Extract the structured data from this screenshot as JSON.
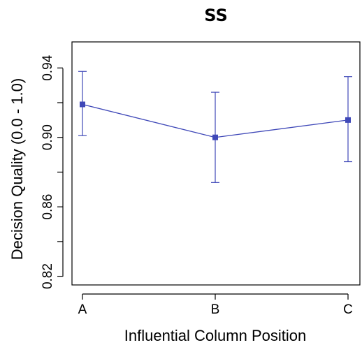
{
  "chart_data": {
    "type": "line",
    "title": "SS",
    "xlabel": "Influential Column Position",
    "ylabel": "Decision Quality (0.0 - 1.0)",
    "categories": [
      "A",
      "B",
      "C"
    ],
    "ylim": [
      0.815,
      0.955
    ],
    "yticks": [
      0.82,
      0.84,
      0.86,
      0.88,
      0.9,
      0.92,
      0.94
    ],
    "ytick_labels": [
      "0.82",
      "",
      "0.86",
      "",
      "0.90",
      "",
      "0.94"
    ],
    "grid": false,
    "series": [
      {
        "values": [
          0.919,
          0.9,
          0.91
        ],
        "error_low": [
          0.901,
          0.874,
          0.886
        ],
        "error_high": [
          0.938,
          0.926,
          0.935
        ],
        "color": "#3F48B8"
      }
    ]
  }
}
